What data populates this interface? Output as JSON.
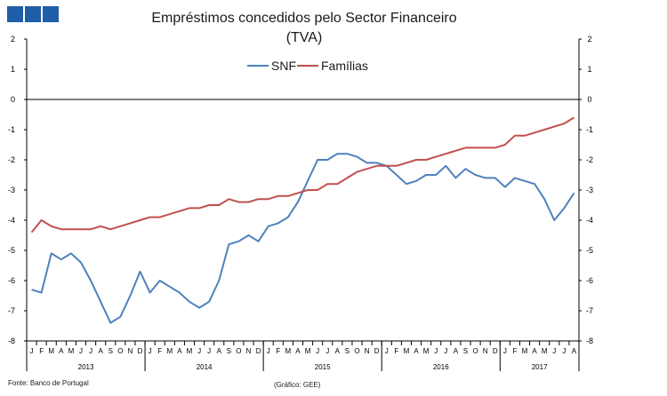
{
  "header": {
    "logo_color": "#1f5ea8"
  },
  "chart_data": {
    "type": "line",
    "title": "Empréstimos concedidos pelo Sector Financeiro",
    "subtitle": "(TVA)",
    "xlabel": "",
    "ylabel": "",
    "ylim": [
      -8,
      2
    ],
    "y_ticks": [
      2,
      1,
      0,
      -1,
      -2,
      -3,
      -4,
      -5,
      -6,
      -7,
      -8
    ],
    "grid": false,
    "legend_position": "top-center",
    "month_labels": [
      "J",
      "F",
      "M",
      "A",
      "M",
      "J",
      "J",
      "A",
      "S",
      "O",
      "N",
      "D",
      "J",
      "F",
      "M",
      "A",
      "M",
      "J",
      "J",
      "A",
      "S",
      "O",
      "N",
      "D",
      "J",
      "F",
      "M",
      "A",
      "M",
      "J",
      "J",
      "A",
      "S",
      "O",
      "N",
      "D",
      "J",
      "F",
      "M",
      "A",
      "M",
      "J",
      "J",
      "A",
      "S",
      "O",
      "N",
      "D",
      "J",
      "F",
      "M",
      "A",
      "M",
      "J",
      "J",
      "A"
    ],
    "years": [
      "2013",
      "2014",
      "2015",
      "2016",
      "2017"
    ],
    "series": [
      {
        "name": "SNF",
        "color": "#4f81bd",
        "values": [
          -6.3,
          -6.4,
          -5.1,
          -5.3,
          -5.1,
          -5.4,
          -6.0,
          -6.7,
          -7.4,
          -7.2,
          -6.5,
          -5.7,
          -6.4,
          -6.0,
          -6.2,
          -6.4,
          -6.7,
          -6.9,
          -6.7,
          -6.0,
          -4.8,
          -4.7,
          -4.5,
          -4.7,
          -4.2,
          -4.1,
          -3.9,
          -3.4,
          -2.7,
          -2.0,
          -2.0,
          -1.8,
          -1.8,
          -1.9,
          -2.1,
          -2.1,
          -2.2,
          -2.5,
          -2.8,
          -2.7,
          -2.5,
          -2.5,
          -2.2,
          -2.6,
          -2.3,
          -2.5,
          -2.6,
          -2.6,
          -2.9,
          -2.6,
          -2.7,
          -2.8,
          -3.3,
          -4.0,
          -3.6,
          -3.1
        ]
      },
      {
        "name": "Famílias",
        "color": "#c0504d",
        "values": [
          -4.4,
          -4.0,
          -4.2,
          -4.3,
          -4.3,
          -4.3,
          -4.3,
          -4.2,
          -4.3,
          -4.2,
          -4.1,
          -4.0,
          -3.9,
          -3.9,
          -3.8,
          -3.7,
          -3.6,
          -3.6,
          -3.5,
          -3.5,
          -3.3,
          -3.4,
          -3.4,
          -3.3,
          -3.3,
          -3.2,
          -3.2,
          -3.1,
          -3.0,
          -3.0,
          -2.8,
          -2.8,
          -2.6,
          -2.4,
          -2.3,
          -2.2,
          -2.2,
          -2.2,
          -2.1,
          -2.0,
          -2.0,
          -1.9,
          -1.8,
          -1.7,
          -1.6,
          -1.6,
          -1.6,
          -1.6,
          -1.5,
          -1.2,
          -1.2,
          -1.1,
          -1.0,
          -0.9,
          -0.8,
          -0.6
        ]
      }
    ]
  },
  "footer": {
    "source": "Fonte: Banco de Portugal",
    "credit": "(Gráfico: GEE)"
  }
}
